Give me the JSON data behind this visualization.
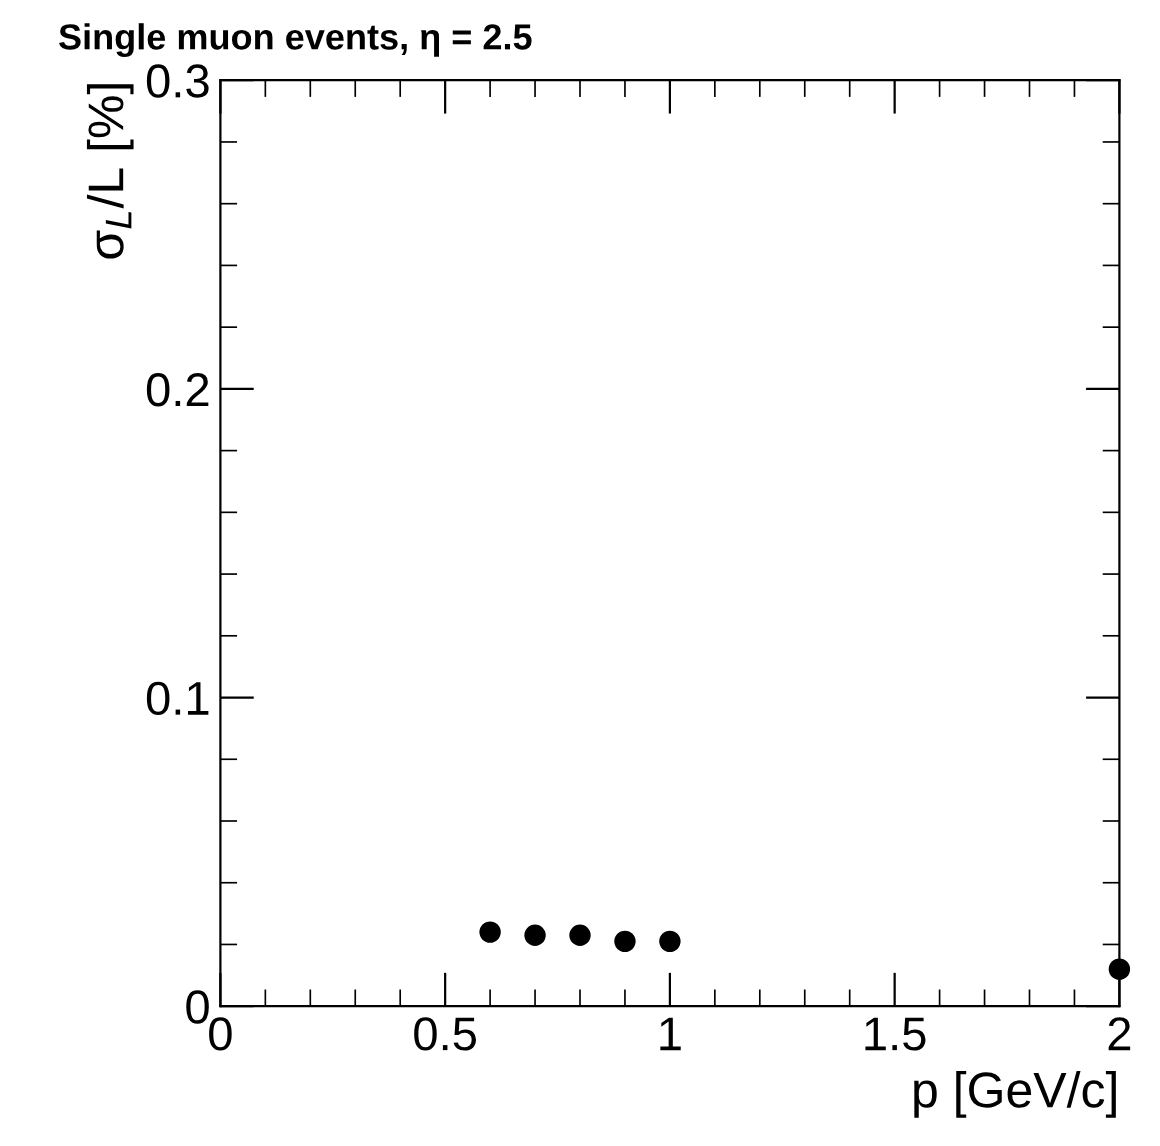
{
  "chart_data": {
    "type": "scatter",
    "title": "Single muon events, η = 2.5",
    "xlabel": "p [GeV/c]",
    "ylabel": "σ$_{L}$/L [%]",
    "x": [
      0.6,
      0.7,
      0.8,
      0.9,
      1.0,
      2.0
    ],
    "series": [
      {
        "color": "#000000",
        "values": [
          0.024,
          0.023,
          0.023,
          0.021,
          0.021,
          0.012
        ]
      }
    ],
    "xlim": [
      0,
      2
    ],
    "ylim": [
      0,
      0.3
    ],
    "xticks": [
      0,
      0.5,
      1,
      1.5,
      2
    ],
    "yticks": [
      0,
      0.1,
      0.2,
      0.3
    ],
    "marker": "circle",
    "grid": false,
    "legend": false
  }
}
